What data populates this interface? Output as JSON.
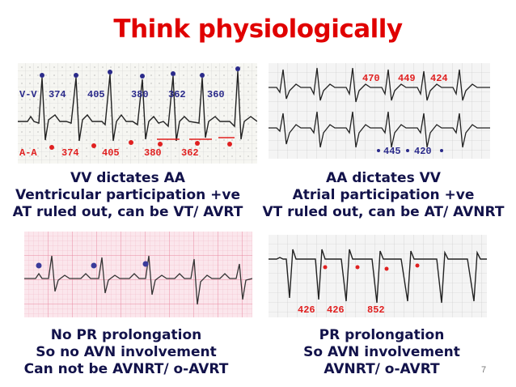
{
  "slide": {
    "title": "Think physiologically",
    "page_number": "7"
  },
  "panels": {
    "top_left": {
      "vv_label": "V-V",
      "vv_intervals": [
        "374",
        "405",
        "380",
        "362",
        "360"
      ],
      "aa_label": "A-A",
      "aa_intervals": [
        "374",
        "405",
        "380",
        "362"
      ],
      "caption": [
        "VV dictates AA",
        "Ventricular participation +ve",
        "AT ruled out, can be VT/ AVRT"
      ]
    },
    "top_right": {
      "upper_intervals": [
        "470",
        "449",
        "424"
      ],
      "lower_intervals": [
        "445",
        "420"
      ],
      "caption": [
        "AA dictates VV",
        "Atrial participation +ve",
        "VT ruled out, can be AT/ AVNRT"
      ]
    },
    "bottom_left": {
      "caption": [
        "No PR prolongation",
        "So no AVN involvement",
        "Can not be AVNRT/ o-AVRT"
      ]
    },
    "bottom_right": {
      "intervals": [
        "426",
        "426",
        "852"
      ],
      "caption": [
        "PR prolongation",
        "So AVN involvement",
        "AVNRT/ o-AVRT"
      ]
    }
  },
  "colors": {
    "title": "#e00000",
    "caption": "#12124a",
    "marker_blue": "#2a2a8a",
    "marker_red": "#e02020",
    "pink_grid": "#f0a8b8"
  }
}
